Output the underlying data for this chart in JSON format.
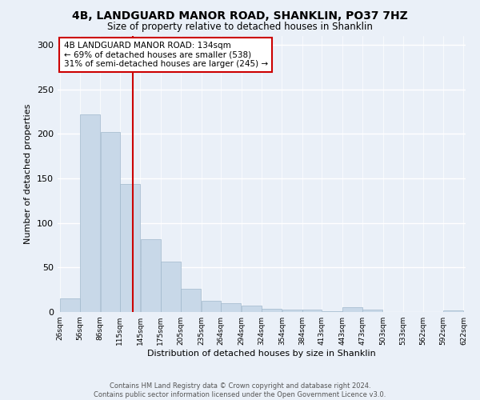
{
  "title_line1": "4B, LANDGUARD MANOR ROAD, SHANKLIN, PO37 7HZ",
  "title_line2": "Size of property relative to detached houses in Shanklin",
  "xlabel": "Distribution of detached houses by size in Shanklin",
  "ylabel": "Number of detached properties",
  "bar_color": "#c8d8e8",
  "bar_edgecolor": "#a0b8cc",
  "vline_color": "#cc0000",
  "vline_x": 134,
  "annotation_text": "4B LANDGUARD MANOR ROAD: 134sqm\n← 69% of detached houses are smaller (538)\n31% of semi-detached houses are larger (245) →",
  "annotation_box_color": "#ffffff",
  "annotation_box_edgecolor": "#cc0000",
  "bins": [
    26,
    56,
    86,
    115,
    145,
    175,
    205,
    235,
    264,
    294,
    324,
    354,
    384,
    413,
    443,
    473,
    503,
    533,
    562,
    592,
    622
  ],
  "bar_heights": [
    15,
    222,
    202,
    144,
    82,
    57,
    26,
    13,
    10,
    7,
    4,
    3,
    3,
    1,
    5,
    3,
    0,
    0,
    0,
    2
  ],
  "ylim": [
    0,
    310
  ],
  "yticks": [
    0,
    50,
    100,
    150,
    200,
    250,
    300
  ],
  "footer_text": "Contains HM Land Registry data © Crown copyright and database right 2024.\nContains public sector information licensed under the Open Government Licence v3.0.",
  "background_color": "#eaf0f8",
  "plot_background": "#eaf0f8",
  "grid_color": "#ffffff"
}
